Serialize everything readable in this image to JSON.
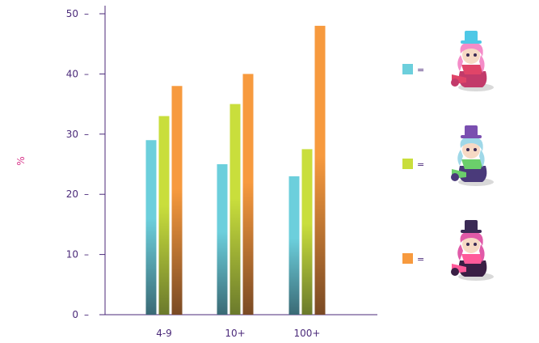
{
  "chart_data": {
    "type": "bar",
    "categories": [
      "4-9",
      "10+",
      "100+"
    ],
    "series": [
      {
        "color": "#6ccfdc",
        "values": [
          29,
          25,
          23
        ]
      },
      {
        "color": "#c9de3c",
        "values": [
          33,
          35,
          27.5
        ]
      },
      {
        "color": "#f79a3e",
        "values": [
          38,
          40,
          48
        ]
      }
    ],
    "ylabel": "%",
    "ylim": [
      0,
      50
    ],
    "yticks": [
      0,
      10,
      20,
      30,
      40,
      50
    ],
    "grid": false,
    "legend_placement": "right",
    "legend_separator": "=",
    "legend_icons": [
      "pink-haired-champion-avatar",
      "purple-goblin-champion-avatar",
      "dark-demon-champion-avatar"
    ]
  }
}
